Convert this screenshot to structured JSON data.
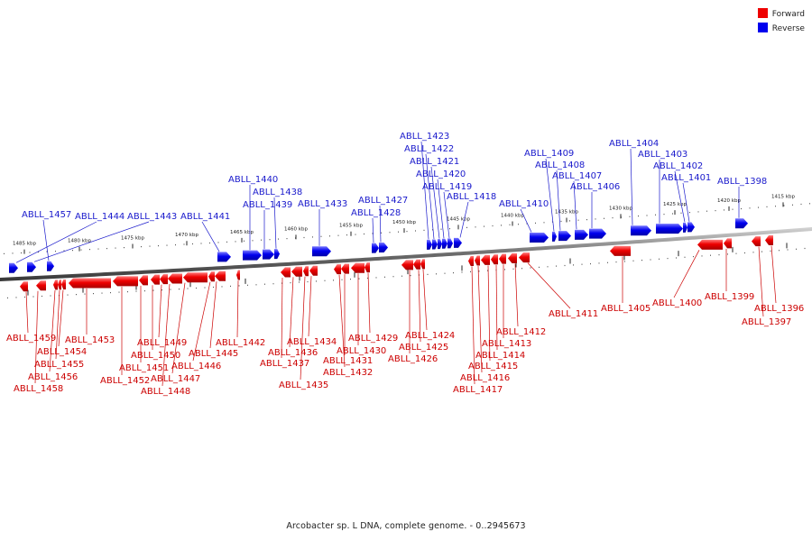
{
  "legend": [
    {
      "label": "Forward",
      "color": "#ee0000"
    },
    {
      "label": "Reverse",
      "color": "#0000ee"
    }
  ],
  "caption": "Arcobacter sp. L DNA, complete genome. - 0..2945673",
  "colors": {
    "forward": "#ee0000",
    "reverse": "#0000ee",
    "backbone": "#6b6b6b",
    "forward_label": "#cc0000",
    "reverse_label": "#1a1acc"
  },
  "kbp_labels": [
    "1485 kbp",
    "1480 kbp",
    "1475 kbp",
    "1470 kbp",
    "1465 kbp",
    "1460 kbp",
    "1455 kbp",
    "1450 kbp",
    "1445 kbp",
    "1440 kbp",
    "1435 kbp",
    "1430 kbp",
    "1425 kbp",
    "1420 kbp",
    "1415 kbp"
  ],
  "genes": [
    {
      "id": "ABLL_1459",
      "strand": "forward"
    },
    {
      "id": "ABLL_1458",
      "strand": "forward"
    },
    {
      "id": "ABLL_1457",
      "strand": "reverse"
    },
    {
      "id": "ABLL_1456",
      "strand": "forward"
    },
    {
      "id": "ABLL_1455",
      "strand": "forward"
    },
    {
      "id": "ABLL_1454",
      "strand": "forward"
    },
    {
      "id": "ABLL_1453",
      "strand": "forward"
    },
    {
      "id": "ABLL_1452",
      "strand": "forward"
    },
    {
      "id": "ABLL_1451",
      "strand": "forward"
    },
    {
      "id": "ABLL_1450",
      "strand": "forward"
    },
    {
      "id": "ABLL_1449",
      "strand": "forward"
    },
    {
      "id": "ABLL_1448",
      "strand": "forward"
    },
    {
      "id": "ABLL_1447",
      "strand": "forward"
    },
    {
      "id": "ABLL_1446",
      "strand": "forward"
    },
    {
      "id": "ABLL_1445",
      "strand": "forward"
    },
    {
      "id": "ABLL_1444",
      "strand": "reverse"
    },
    {
      "id": "ABLL_1443",
      "strand": "reverse"
    },
    {
      "id": "ABLL_1442",
      "strand": "forward"
    },
    {
      "id": "ABLL_1441",
      "strand": "reverse"
    },
    {
      "id": "ABLL_1440",
      "strand": "reverse"
    },
    {
      "id": "ABLL_1439",
      "strand": "reverse"
    },
    {
      "id": "ABLL_1438",
      "strand": "reverse"
    },
    {
      "id": "ABLL_1437",
      "strand": "forward"
    },
    {
      "id": "ABLL_1436",
      "strand": "forward"
    },
    {
      "id": "ABLL_1435",
      "strand": "forward"
    },
    {
      "id": "ABLL_1434",
      "strand": "forward"
    },
    {
      "id": "ABLL_1433",
      "strand": "reverse"
    },
    {
      "id": "ABLL_1432",
      "strand": "forward"
    },
    {
      "id": "ABLL_1431",
      "strand": "forward"
    },
    {
      "id": "ABLL_1430",
      "strand": "forward"
    },
    {
      "id": "ABLL_1429",
      "strand": "forward"
    },
    {
      "id": "ABLL_1428",
      "strand": "reverse"
    },
    {
      "id": "ABLL_1427",
      "strand": "reverse"
    },
    {
      "id": "ABLL_1426",
      "strand": "forward"
    },
    {
      "id": "ABLL_1425",
      "strand": "forward"
    },
    {
      "id": "ABLL_1424",
      "strand": "forward"
    },
    {
      "id": "ABLL_1423",
      "strand": "reverse"
    },
    {
      "id": "ABLL_1422",
      "strand": "reverse"
    },
    {
      "id": "ABLL_1421",
      "strand": "reverse"
    },
    {
      "id": "ABLL_1420",
      "strand": "reverse"
    },
    {
      "id": "ABLL_1419",
      "strand": "reverse"
    },
    {
      "id": "ABLL_1418",
      "strand": "reverse"
    },
    {
      "id": "ABLL_1417",
      "strand": "forward"
    },
    {
      "id": "ABLL_1416",
      "strand": "forward"
    },
    {
      "id": "ABLL_1415",
      "strand": "forward"
    },
    {
      "id": "ABLL_1414",
      "strand": "forward"
    },
    {
      "id": "ABLL_1413",
      "strand": "forward"
    },
    {
      "id": "ABLL_1412",
      "strand": "forward"
    },
    {
      "id": "ABLL_1411",
      "strand": "forward"
    },
    {
      "id": "ABLL_1410",
      "strand": "reverse"
    },
    {
      "id": "ABLL_1409",
      "strand": "reverse"
    },
    {
      "id": "ABLL_1408",
      "strand": "reverse"
    },
    {
      "id": "ABLL_1407",
      "strand": "reverse"
    },
    {
      "id": "ABLL_1406",
      "strand": "reverse"
    },
    {
      "id": "ABLL_1405",
      "strand": "forward"
    },
    {
      "id": "ABLL_1404",
      "strand": "reverse"
    },
    {
      "id": "ABLL_1403",
      "strand": "reverse"
    },
    {
      "id": "ABLL_1402",
      "strand": "reverse"
    },
    {
      "id": "ABLL_1401",
      "strand": "reverse"
    },
    {
      "id": "ABLL_1400",
      "strand": "forward"
    },
    {
      "id": "ABLL_1399",
      "strand": "forward"
    },
    {
      "id": "ABLL_1398",
      "strand": "reverse"
    },
    {
      "id": "ABLL_1397",
      "strand": "forward"
    },
    {
      "id": "ABLL_1396",
      "strand": "forward"
    }
  ]
}
